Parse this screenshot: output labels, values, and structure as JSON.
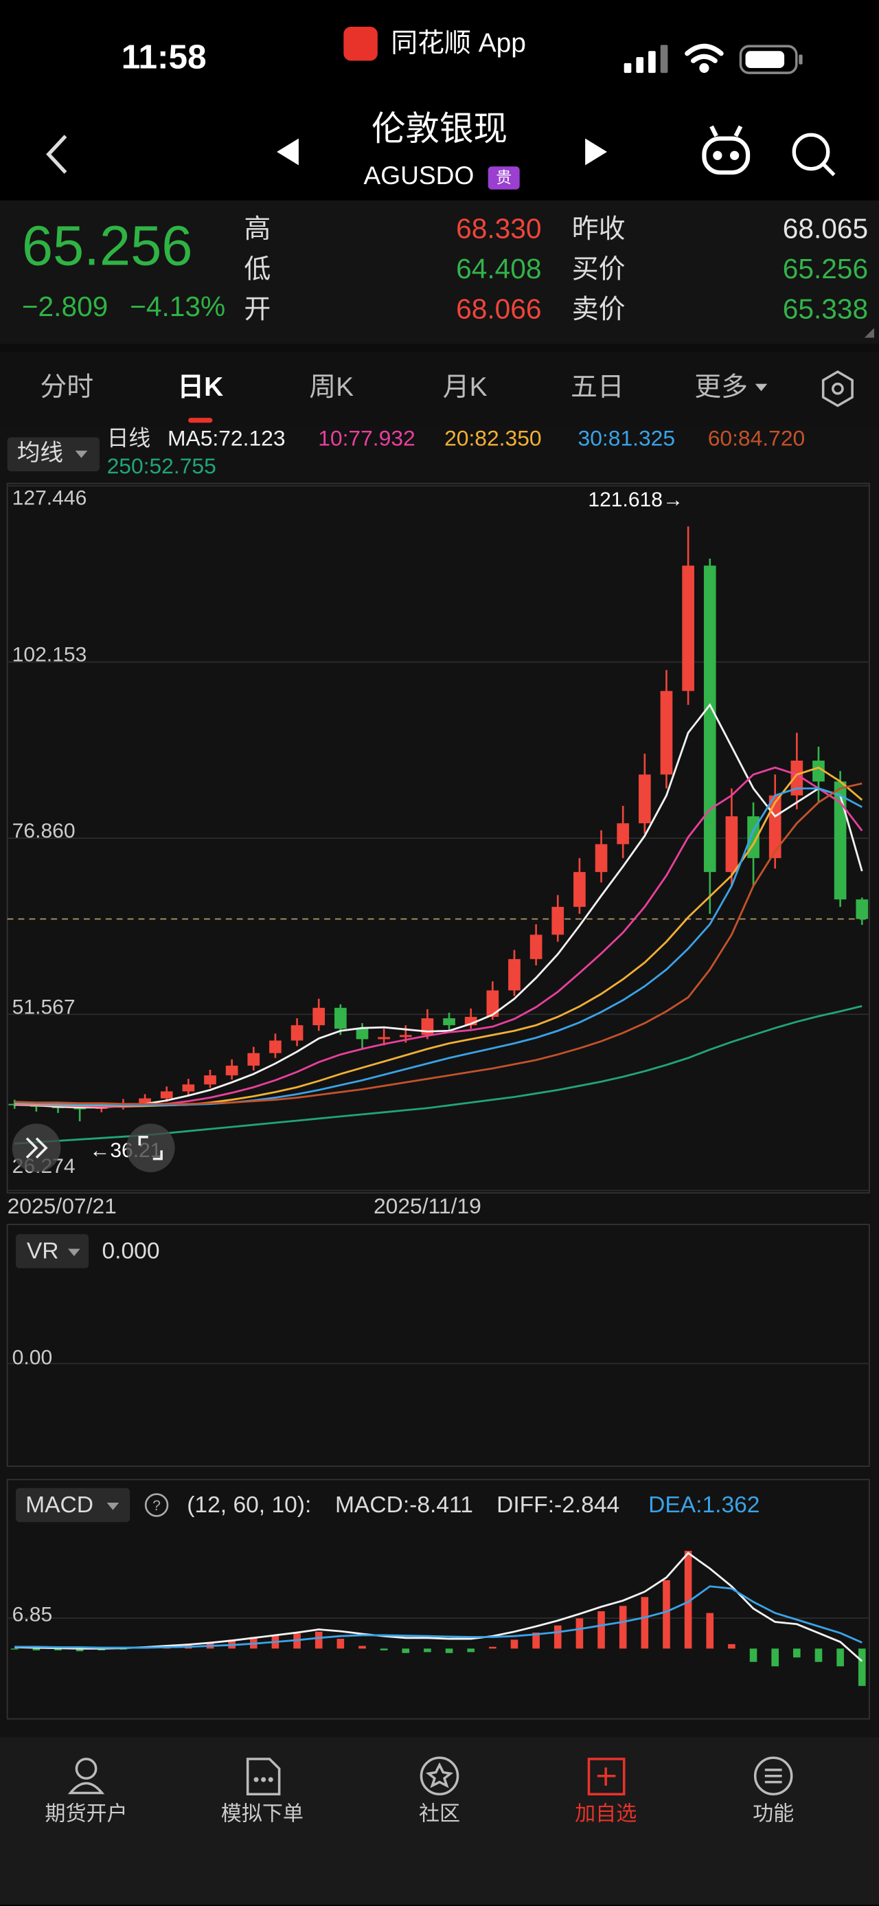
{
  "status": {
    "time": "11:58",
    "app": "同花顺 App"
  },
  "header": {
    "title": "伦敦银现",
    "code": "AGUSDO",
    "badge": "贵"
  },
  "quote": {
    "price": "65.256",
    "change": "−2.809",
    "change_pct": "−4.13%",
    "left_fields": [
      {
        "label": "高",
        "value": "68.330",
        "color": "#f0453a"
      },
      {
        "label": "低",
        "value": "64.408",
        "color": "#33b34a"
      },
      {
        "label": "开",
        "value": "68.066",
        "color": "#f0453a"
      }
    ],
    "right_fields": [
      {
        "label": "昨收",
        "value": "68.065",
        "color": "#e6e6e6"
      },
      {
        "label": "买价",
        "value": "65.256",
        "color": "#33b34a"
      },
      {
        "label": "卖价",
        "value": "65.338",
        "color": "#33b34a"
      }
    ]
  },
  "tabs": [
    "分时",
    "日K",
    "周K",
    "月K",
    "五日",
    "更多"
  ],
  "chart_data": {
    "type": "candlestick",
    "ma_button": "均线",
    "period": "日线",
    "ylim": [
      26.274,
      127.446
    ],
    "yticks": [
      26.274,
      51.567,
      {
        "value": 76.86,
        "label": "76.860"
      },
      102.153,
      127.446
    ],
    "grid": true,
    "up_color": "#f0453a",
    "down_color": "#33b34a",
    "categories": [
      "2025/07/21",
      null,
      null,
      null,
      null,
      null,
      null,
      null,
      null,
      null,
      null,
      null,
      null,
      null,
      null,
      null,
      null,
      null,
      null,
      "2025/11/19",
      null,
      null,
      null,
      null,
      null,
      null,
      null,
      null,
      null,
      null,
      null,
      null,
      null,
      null,
      null,
      null,
      null,
      null,
      null,
      null
    ],
    "ohlc": [
      [
        38.7,
        39.3,
        38.0,
        38.5
      ],
      [
        38.5,
        39.0,
        37.6,
        38.3
      ],
      [
        38.3,
        38.9,
        37.4,
        38.1
      ],
      [
        38.1,
        38.8,
        36.21,
        38.0
      ],
      [
        38.0,
        38.9,
        37.5,
        38.3
      ],
      [
        38.3,
        39.4,
        37.9,
        38.8
      ],
      [
        38.8,
        40.1,
        38.4,
        39.5
      ],
      [
        39.5,
        41.2,
        39.0,
        40.5
      ],
      [
        40.5,
        42.3,
        40.0,
        41.5
      ],
      [
        41.5,
        43.6,
        41.0,
        42.8
      ],
      [
        42.8,
        45.1,
        42.2,
        44.2
      ],
      [
        44.2,
        46.9,
        43.5,
        46.0
      ],
      [
        46.0,
        48.8,
        45.3,
        47.8
      ],
      [
        47.8,
        51.0,
        47.0,
        50.0
      ],
      [
        50.0,
        53.8,
        49.2,
        52.5
      ],
      [
        52.5,
        53.0,
        48.6,
        49.5
      ],
      [
        49.5,
        50.3,
        46.5,
        48.0
      ],
      [
        48.0,
        49.5,
        47.1,
        48.3
      ],
      [
        48.3,
        50.0,
        47.5,
        48.6
      ],
      [
        48.6,
        52.3,
        48.0,
        51.0
      ],
      [
        51.0,
        51.8,
        49.0,
        50.0
      ],
      [
        50.0,
        52.4,
        49.5,
        51.2
      ],
      [
        51.2,
        56.3,
        50.8,
        55.0
      ],
      [
        55.0,
        60.8,
        54.2,
        59.5
      ],
      [
        59.5,
        64.5,
        58.6,
        63.0
      ],
      [
        63.0,
        68.7,
        62.0,
        67.0
      ],
      [
        67.0,
        74.0,
        66.0,
        72.0
      ],
      [
        72.0,
        78.0,
        70.5,
        76.0
      ],
      [
        76.0,
        81.5,
        74.0,
        79.0
      ],
      [
        79.0,
        89.0,
        77.5,
        86.0
      ],
      [
        86.0,
        101.0,
        84.0,
        98.0
      ],
      [
        98.0,
        121.618,
        96.0,
        116.0
      ],
      [
        116.0,
        117.0,
        66.0,
        72.0
      ],
      [
        72.0,
        84.0,
        70.0,
        80.0
      ],
      [
        80.0,
        82.0,
        70.0,
        74.0
      ],
      [
        74.0,
        86.0,
        72.5,
        83.0
      ],
      [
        83.0,
        92.0,
        81.0,
        88.0
      ],
      [
        88.0,
        90.0,
        82.0,
        85.0
      ],
      [
        85.0,
        86.5,
        67.0,
        68.065
      ],
      [
        68.066,
        68.33,
        64.408,
        65.256
      ]
    ],
    "series": [
      {
        "legend": "MA5:72.123",
        "color": "#f2f2f2",
        "values": [
          38.6,
          38.5,
          38.3,
          38.2,
          38.2,
          38.4,
          38.7,
          39.2,
          39.9,
          40.7,
          41.8,
          43.0,
          44.5,
          46.2,
          48.1,
          49.2,
          49.6,
          49.7,
          49.4,
          49.1,
          49.2,
          50.2,
          51.5,
          53.8,
          56.8,
          60.2,
          64.3,
          68.6,
          72.8,
          77.2,
          83.0,
          92.0,
          96.0,
          90.0,
          84.0,
          80.0,
          82.0,
          84.0,
          83.0,
          72.123
        ]
      },
      {
        "legend": "10:77.932",
        "color": "#e8409c",
        "values": [
          38.7,
          38.6,
          38.5,
          38.4,
          38.3,
          38.3,
          38.4,
          38.7,
          39.1,
          39.6,
          40.3,
          41.1,
          42.1,
          43.3,
          44.7,
          45.8,
          46.6,
          47.3,
          47.9,
          48.5,
          49.0,
          49.3,
          49.8,
          50.9,
          52.6,
          54.8,
          57.5,
          60.3,
          63.3,
          67.0,
          71.5,
          77.0,
          81.0,
          83.0,
          86.0,
          87.0,
          86.0,
          84.0,
          82.0,
          77.932
        ]
      },
      {
        "legend": "20:82.350",
        "color": "#f2b035",
        "values": [
          38.8,
          38.7,
          38.6,
          38.5,
          38.5,
          38.4,
          38.4,
          38.5,
          38.6,
          38.9,
          39.3,
          39.8,
          40.4,
          41.1,
          42.0,
          43.0,
          43.9,
          44.8,
          45.7,
          46.6,
          47.4,
          48.0,
          48.6,
          49.2,
          50.0,
          51.2,
          52.7,
          54.5,
          56.6,
          59.0,
          62.0,
          65.5,
          68.5,
          71.5,
          76.0,
          82.0,
          86.0,
          87.0,
          85.0,
          82.35
        ]
      },
      {
        "legend": "30:81.325",
        "color": "#3aa3e8",
        "values": [
          38.9,
          38.8,
          38.7,
          38.6,
          38.6,
          38.5,
          38.5,
          38.5,
          38.6,
          38.7,
          38.9,
          39.2,
          39.6,
          40.1,
          40.7,
          41.4,
          42.1,
          42.9,
          43.7,
          44.5,
          45.3,
          46.0,
          46.7,
          47.4,
          48.2,
          49.2,
          50.4,
          51.9,
          53.6,
          55.6,
          58.0,
          61.0,
          64.5,
          70.0,
          78.0,
          83.0,
          84.0,
          84.0,
          83.0,
          81.325
        ]
      },
      {
        "legend": "60:84.720",
        "color": "#c4522a",
        "values": [
          39.0,
          38.9,
          38.9,
          38.8,
          38.8,
          38.7,
          38.7,
          38.7,
          38.7,
          38.8,
          38.9,
          39.1,
          39.3,
          39.6,
          40.0,
          40.4,
          40.8,
          41.3,
          41.8,
          42.3,
          42.8,
          43.3,
          43.8,
          44.4,
          45.0,
          45.8,
          46.7,
          47.7,
          48.9,
          50.3,
          52.0,
          54.0,
          58.0,
          63.0,
          70.0,
          75.0,
          79.0,
          82.0,
          84.0,
          84.72
        ]
      },
      {
        "legend": "250:52.755",
        "color": "#21a579",
        "values": [
          33.0,
          33.2,
          33.4,
          33.6,
          33.8,
          34.0,
          34.2,
          34.5,
          34.8,
          35.1,
          35.4,
          35.7,
          36.0,
          36.3,
          36.6,
          36.9,
          37.2,
          37.5,
          37.8,
          38.1,
          38.5,
          38.9,
          39.3,
          39.7,
          40.2,
          40.7,
          41.3,
          41.9,
          42.6,
          43.4,
          44.3,
          45.3,
          46.5,
          47.6,
          48.6,
          49.6,
          50.5,
          51.3,
          52.0,
          52.755
        ]
      }
    ],
    "high_marker": {
      "value": 121.618,
      "label": "121.618→"
    },
    "low_marker": {
      "value": 36.21,
      "label": "←36.21"
    }
  },
  "vr_panel": {
    "indicator": "VR",
    "reading": "0.000",
    "ylim": [
      -1,
      1
    ],
    "yticks": [
      {
        "value": 0,
        "label": "0.00"
      }
    ]
  },
  "macd_panel": {
    "type": "macd",
    "indicator": "MACD",
    "params": "(12, 60, 10):",
    "ylim": [
      -15,
      26
    ],
    "yticks": [
      6.85
    ],
    "hist_legend": "MACD:-8.411",
    "up_color": "#f0453a",
    "down_color": "#33b34a",
    "hist": [
      -0.2,
      -0.4,
      -0.4,
      -0.6,
      -0.4,
      -0.2,
      0.2,
      0.6,
      1.0,
      1.4,
      2.0,
      2.6,
      3.0,
      3.4,
      3.8,
      2.2,
      0.6,
      -0.4,
      -1.0,
      -0.8,
      -1.0,
      -0.8,
      0.4,
      2.0,
      3.6,
      5.2,
      6.8,
      8.4,
      9.6,
      11.6,
      15.4,
      22.0,
      8.0,
      1.0,
      -3.0,
      -4.0,
      -2.0,
      -3.0,
      -4.0,
      -8.411
    ],
    "series": [
      {
        "legend": "DIFF:-2.844",
        "color": "#f2f2f2",
        "values": [
          0.3,
          0.2,
          0.1,
          0.0,
          0.0,
          0.1,
          0.3,
          0.6,
          0.9,
          1.3,
          1.8,
          2.4,
          3.0,
          3.6,
          4.3,
          3.9,
          3.3,
          2.8,
          2.4,
          2.4,
          2.2,
          2.2,
          2.8,
          3.8,
          5.0,
          6.3,
          7.8,
          9.4,
          10.8,
          12.8,
          16.0,
          21.5,
          18.0,
          14.0,
          9.0,
          6.0,
          5.5,
          3.5,
          1.5,
          -2.844
        ]
      },
      {
        "legend": "DEA:1.362",
        "color": "#3aa3e8",
        "values": [
          0.4,
          0.4,
          0.3,
          0.3,
          0.2,
          0.2,
          0.2,
          0.3,
          0.4,
          0.6,
          0.8,
          1.1,
          1.5,
          1.9,
          2.4,
          2.8,
          3.0,
          3.0,
          2.9,
          2.8,
          2.7,
          2.6,
          2.6,
          2.8,
          3.2,
          3.7,
          4.4,
          5.2,
          6.0,
          7.0,
          8.3,
          10.5,
          14.0,
          13.5,
          10.5,
          8.0,
          6.5,
          5.0,
          3.5,
          1.362
        ]
      }
    ]
  },
  "nav": [
    "期货开户",
    "模拟下单",
    "社区",
    "加自选",
    "功能"
  ]
}
